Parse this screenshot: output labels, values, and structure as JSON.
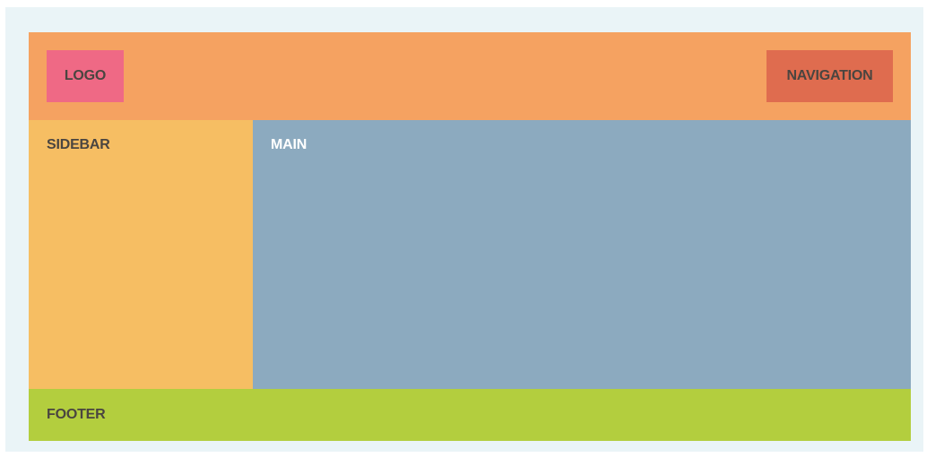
{
  "header": {
    "logo_label": "LOGO",
    "navigation_label": "NAVIGATION"
  },
  "sidebar": {
    "label": "SIDEBAR"
  },
  "main": {
    "label": "MAIN"
  },
  "footer": {
    "label": "FOOTER"
  },
  "colors": {
    "frame": "#eaf4f7",
    "header": "#f5a261",
    "logo": "#ef6985",
    "navigation": "#df6c4f",
    "sidebar": "#f6be63",
    "main": "#8caabf",
    "footer": "#b3ce3e"
  }
}
